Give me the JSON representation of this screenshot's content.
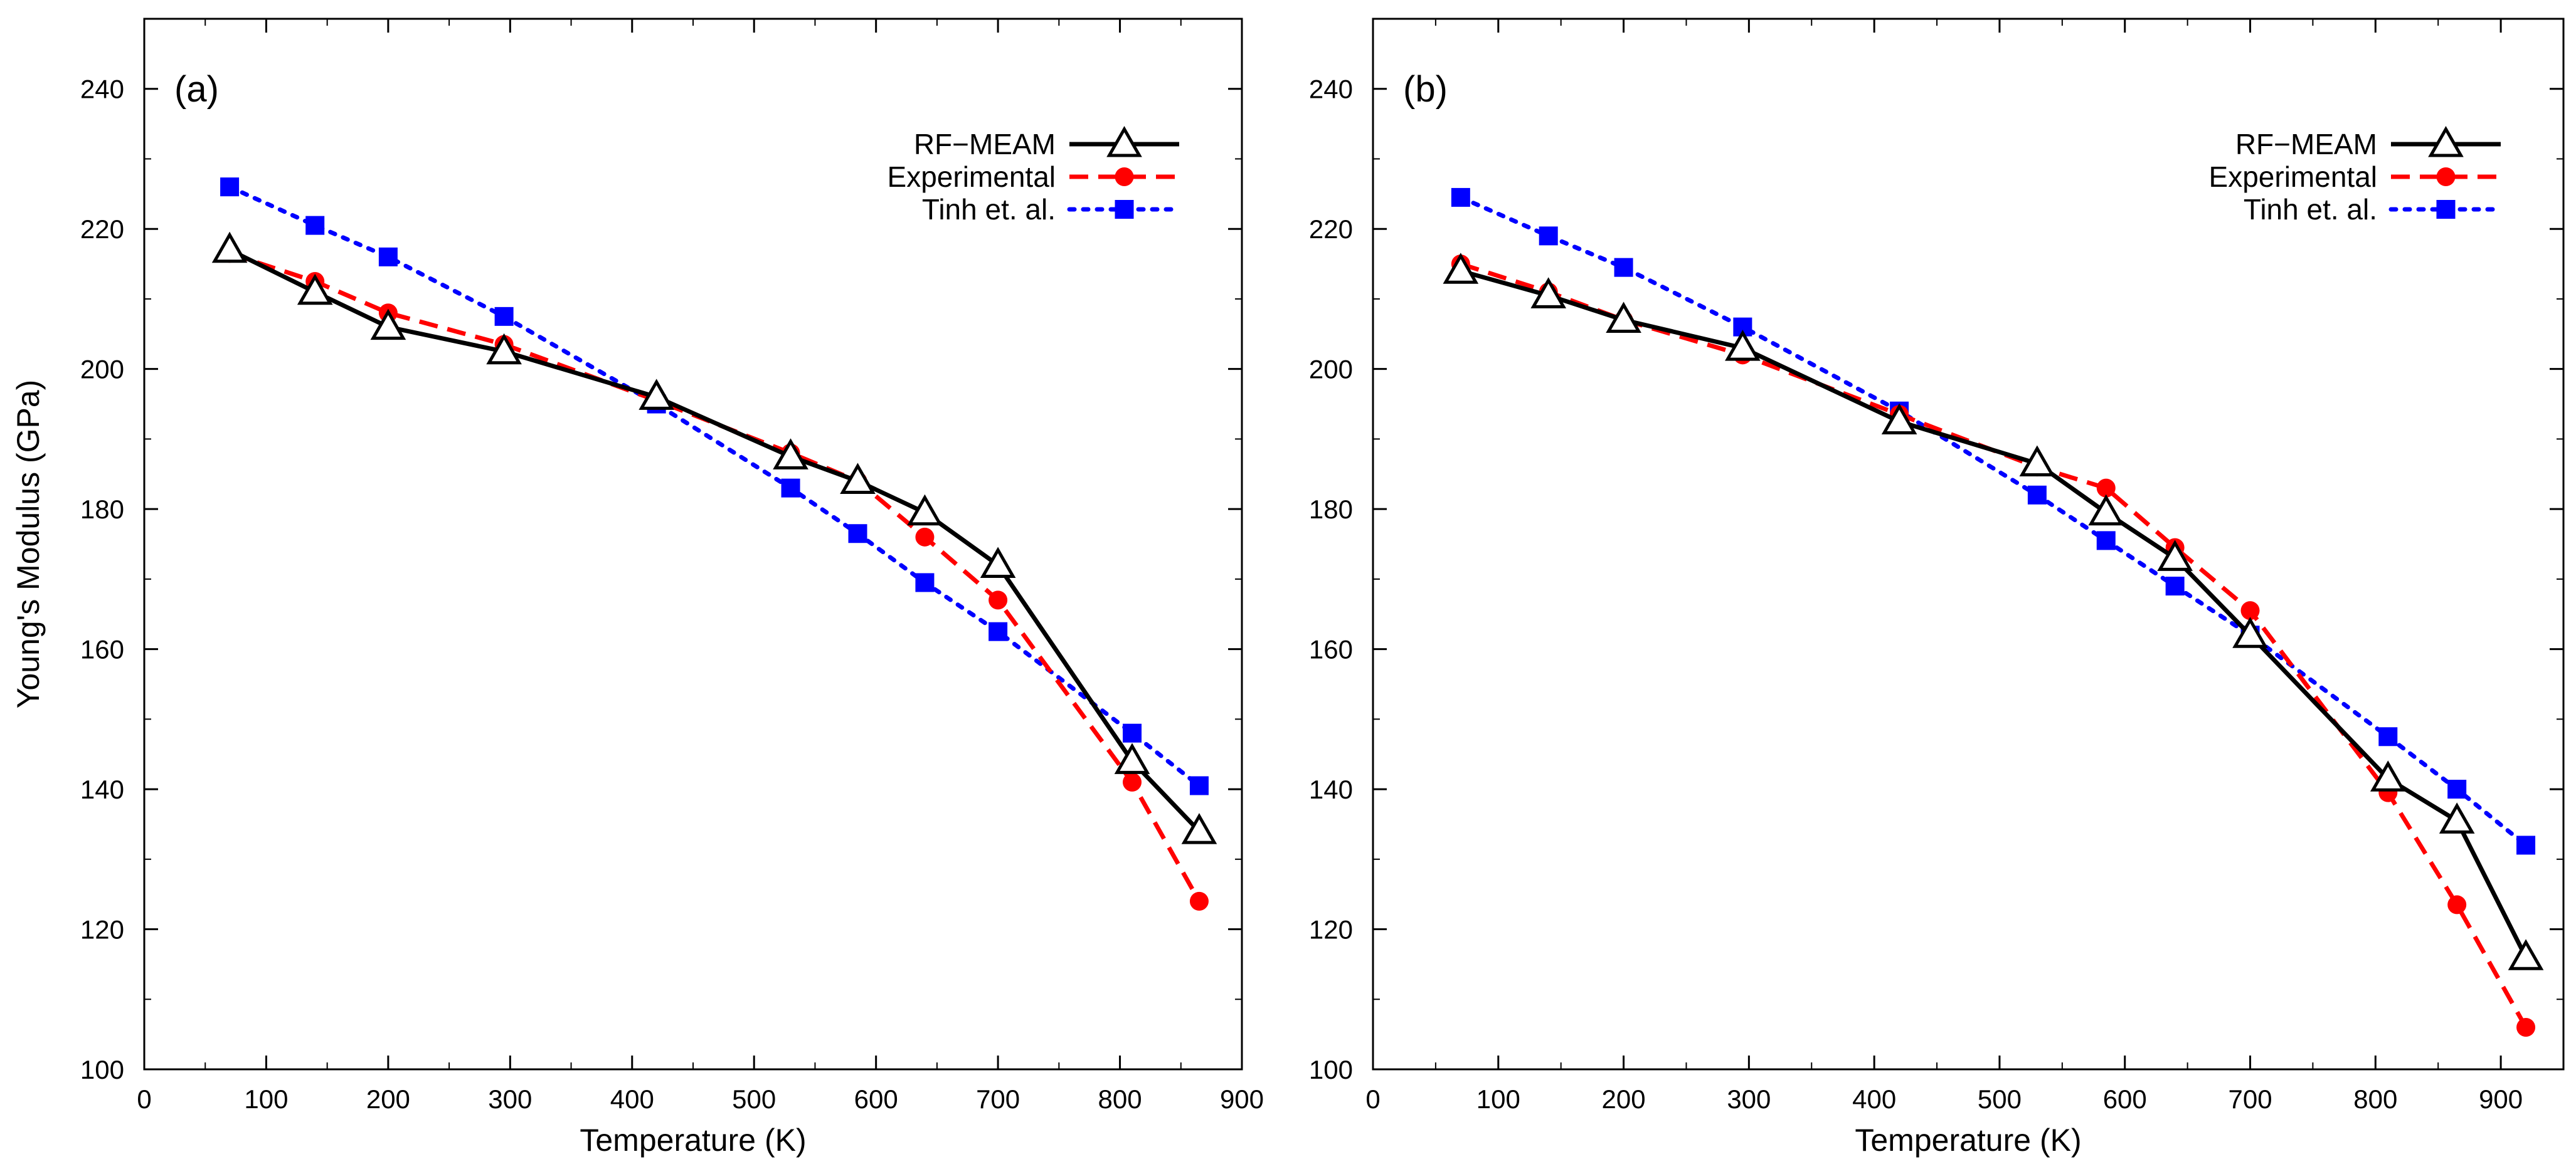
{
  "chart_data": [
    {
      "type": "line",
      "panel_label": "(a)",
      "xlabel": "Temperature (K)",
      "ylabel": "Young's Modulus (GPa)",
      "xlim": [
        0,
        900
      ],
      "ylim": [
        100,
        250
      ],
      "xticks": [
        0,
        100,
        200,
        300,
        400,
        500,
        600,
        700,
        800,
        900
      ],
      "yticks": [
        100,
        120,
        140,
        160,
        180,
        200,
        220,
        240
      ],
      "legend_position": "top-right",
      "grid": false,
      "series": [
        {
          "name": "RF−MEAM",
          "color": "#000000",
          "line": "solid",
          "marker": "open-triangle",
          "x": [
            70,
            140,
            200,
            295,
            420,
            530,
            585,
            640,
            700,
            810,
            865
          ],
          "y": [
            217,
            211,
            206,
            202.5,
            196,
            187.5,
            184,
            179.5,
            172,
            144,
            134
          ]
        },
        {
          "name": "Experimental",
          "color": "#ff0000",
          "line": "dashed",
          "marker": "filled-circle",
          "x": [
            70,
            140,
            200,
            295,
            420,
            530,
            585,
            640,
            700,
            810,
            865
          ],
          "y": [
            216.5,
            212.5,
            208,
            203.5,
            195.5,
            188,
            184,
            176,
            167,
            141,
            124
          ]
        },
        {
          "name": "Tinh et. al.",
          "color": "#0000ff",
          "line": "dotted",
          "marker": "filled-square",
          "x": [
            70,
            140,
            200,
            295,
            420,
            530,
            585,
            640,
            700,
            810,
            865
          ],
          "y": [
            226,
            220.5,
            216,
            207.5,
            195,
            183,
            176.5,
            169.5,
            162.5,
            148,
            140.5
          ]
        }
      ]
    },
    {
      "type": "line",
      "panel_label": "(b)",
      "xlabel": "Temperature (K)",
      "ylabel": "",
      "xlim": [
        0,
        950
      ],
      "ylim": [
        100,
        250
      ],
      "xticks": [
        0,
        100,
        200,
        300,
        400,
        500,
        600,
        700,
        800,
        900
      ],
      "yticks": [
        100,
        120,
        140,
        160,
        180,
        200,
        220,
        240
      ],
      "legend_position": "top-right",
      "grid": false,
      "series": [
        {
          "name": "RF−MEAM",
          "color": "#000000",
          "line": "solid",
          "marker": "open-triangle",
          "x": [
            70,
            140,
            200,
            295,
            420,
            530,
            585,
            640,
            700,
            810,
            865,
            920
          ],
          "y": [
            214,
            210.5,
            207,
            203,
            192.5,
            186.5,
            179.5,
            173,
            162,
            141.5,
            135.5,
            116
          ]
        },
        {
          "name": "Experimental",
          "color": "#ff0000",
          "line": "dashed",
          "marker": "filled-circle",
          "x": [
            70,
            140,
            200,
            295,
            420,
            530,
            585,
            640,
            700,
            810,
            865,
            920
          ],
          "y": [
            215,
            211,
            207,
            202,
            193.5,
            186,
            183,
            174.5,
            165.5,
            139.5,
            123.5,
            106
          ]
        },
        {
          "name": "Tinh et. al.",
          "color": "#0000ff",
          "line": "dotted",
          "marker": "filled-square",
          "x": [
            70,
            140,
            200,
            295,
            420,
            530,
            585,
            640,
            700,
            810,
            865,
            920
          ],
          "y": [
            224.5,
            219,
            214.5,
            206,
            194,
            182,
            175.5,
            169,
            162,
            147.5,
            140,
            132
          ]
        }
      ]
    }
  ]
}
